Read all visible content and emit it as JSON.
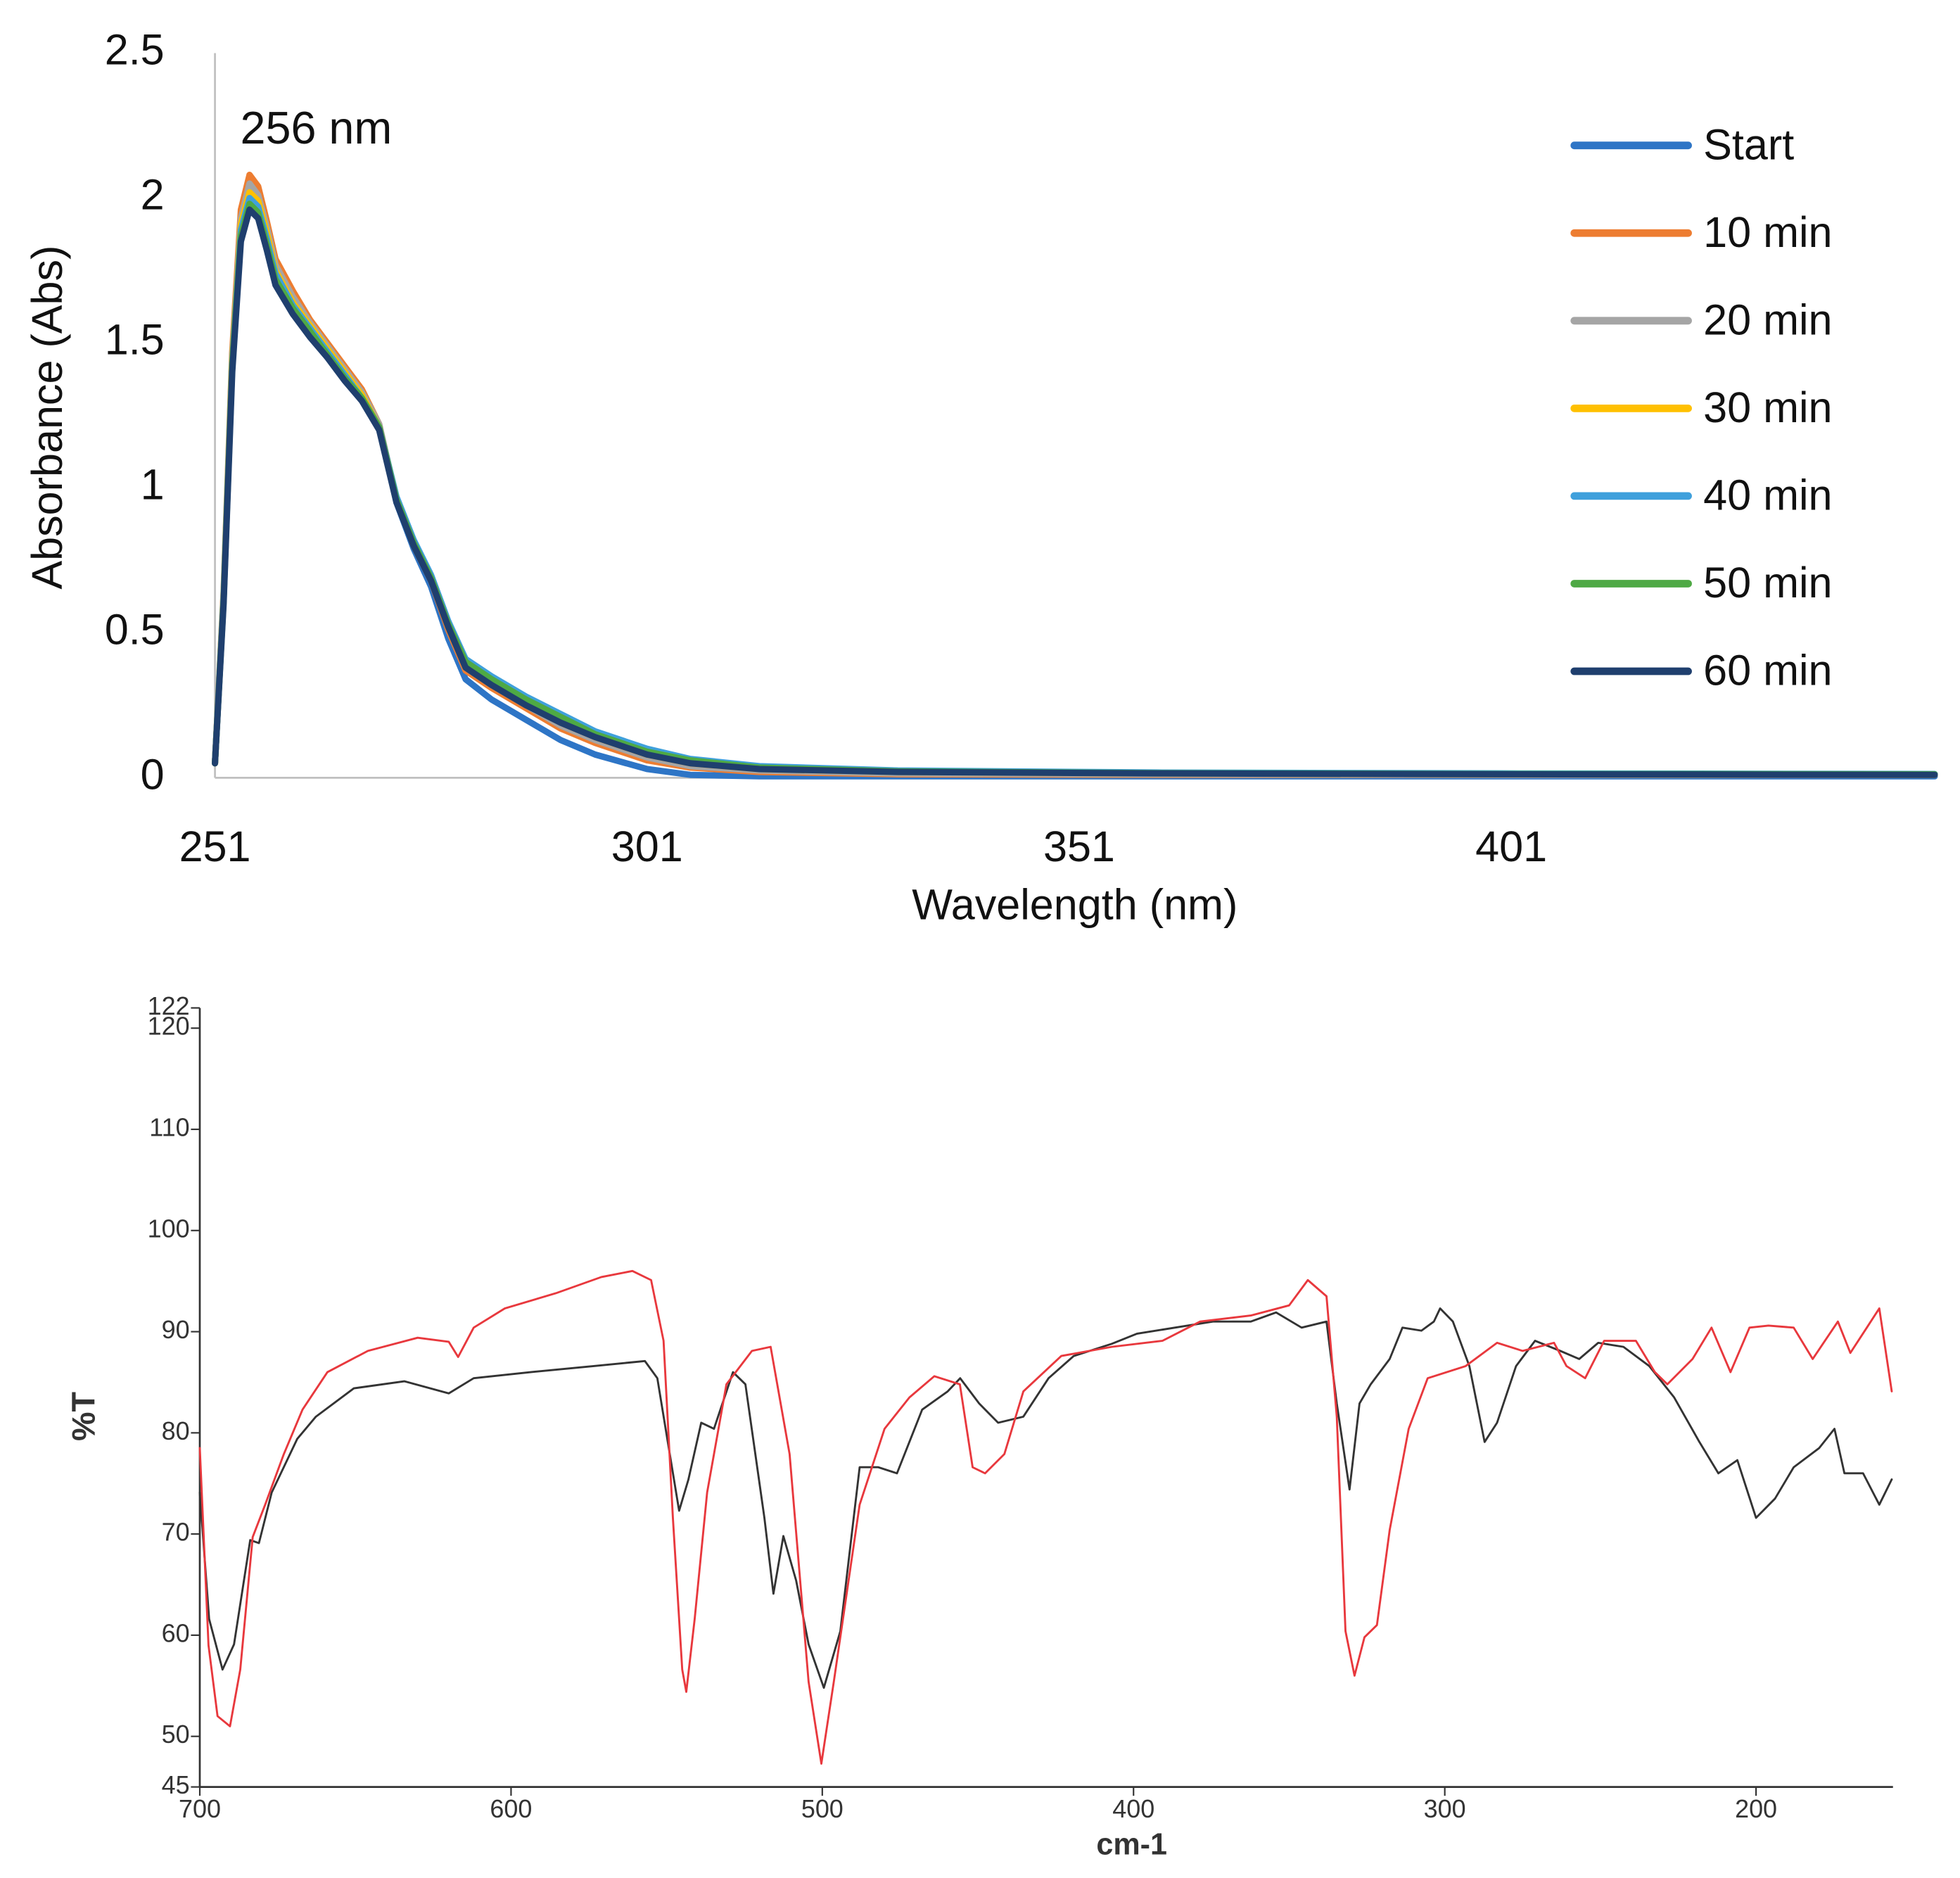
{
  "chart_data": [
    {
      "type": "line",
      "annotation": "256 nm",
      "xlabel": "Wavelength (nm)",
      "ylabel": "Absorbance (Abs)",
      "xlim": [
        251,
        450
      ],
      "xticks": [
        251,
        301,
        351,
        401
      ],
      "ylim": [
        0,
        2.5
      ],
      "yticks": [
        0,
        0.5,
        1,
        1.5,
        2,
        2.5
      ],
      "legend": "upper right",
      "x": [
        251,
        252,
        253,
        254,
        255,
        256,
        257,
        258,
        260,
        262,
        264,
        266,
        268,
        270,
        272,
        274,
        276,
        278,
        280,
        283,
        287,
        291,
        295,
        301,
        306,
        314,
        330,
        360,
        400,
        450
      ],
      "series": [
        {
          "name": "Start",
          "color": "#2e75c6",
          "values": [
            0.05,
            0.62,
            1.43,
            1.9,
            2.0,
            1.97,
            1.86,
            1.74,
            1.64,
            1.55,
            1.47,
            1.39,
            1.32,
            1.21,
            0.95,
            0.79,
            0.66,
            0.48,
            0.34,
            0.27,
            0.2,
            0.13,
            0.08,
            0.03,
            0.01,
            0.005,
            0.005,
            0.005,
            0.005,
            0.005
          ]
        },
        {
          "name": "10 min",
          "color": "#ed7d31",
          "values": [
            0.05,
            0.64,
            1.47,
            1.96,
            2.08,
            2.04,
            1.92,
            1.79,
            1.68,
            1.58,
            1.5,
            1.42,
            1.34,
            1.22,
            0.96,
            0.8,
            0.68,
            0.51,
            0.37,
            0.31,
            0.24,
            0.17,
            0.12,
            0.06,
            0.035,
            0.02,
            0.012,
            0.01,
            0.01,
            0.01
          ]
        },
        {
          "name": "20 min",
          "color": "#a5a5a5",
          "values": [
            0.05,
            0.63,
            1.45,
            1.93,
            2.05,
            2.01,
            1.9,
            1.77,
            1.66,
            1.57,
            1.49,
            1.41,
            1.33,
            1.22,
            0.96,
            0.81,
            0.69,
            0.52,
            0.38,
            0.32,
            0.25,
            0.18,
            0.13,
            0.07,
            0.04,
            0.025,
            0.015,
            0.012,
            0.01,
            0.01
          ]
        },
        {
          "name": "30 min",
          "color": "#ffc000",
          "values": [
            0.05,
            0.62,
            1.44,
            1.91,
            2.02,
            1.99,
            1.88,
            1.75,
            1.64,
            1.56,
            1.48,
            1.4,
            1.32,
            1.21,
            0.96,
            0.81,
            0.69,
            0.52,
            0.39,
            0.33,
            0.26,
            0.2,
            0.14,
            0.08,
            0.05,
            0.03,
            0.02,
            0.015,
            0.012,
            0.01
          ]
        },
        {
          "name": "40 min",
          "color": "#3fa0dc",
          "values": [
            0.05,
            0.62,
            1.43,
            1.89,
            2.0,
            1.97,
            1.86,
            1.74,
            1.63,
            1.55,
            1.47,
            1.39,
            1.31,
            1.21,
            0.97,
            0.82,
            0.7,
            0.54,
            0.41,
            0.35,
            0.28,
            0.22,
            0.16,
            0.1,
            0.065,
            0.04,
            0.025,
            0.018,
            0.015,
            0.013
          ]
        },
        {
          "name": "50 min",
          "color": "#4ea944",
          "values": [
            0.05,
            0.61,
            1.42,
            1.87,
            1.98,
            1.95,
            1.84,
            1.72,
            1.62,
            1.54,
            1.46,
            1.38,
            1.31,
            1.21,
            0.96,
            0.81,
            0.69,
            0.53,
            0.4,
            0.34,
            0.27,
            0.21,
            0.15,
            0.09,
            0.06,
            0.035,
            0.022,
            0.016,
            0.013,
            0.012
          ]
        },
        {
          "name": "60 min",
          "color": "#1f3f6e",
          "values": [
            0.05,
            0.6,
            1.4,
            1.85,
            1.96,
            1.93,
            1.82,
            1.7,
            1.6,
            1.52,
            1.45,
            1.37,
            1.3,
            1.2,
            0.95,
            0.8,
            0.68,
            0.52,
            0.38,
            0.32,
            0.25,
            0.19,
            0.14,
            0.08,
            0.05,
            0.03,
            0.02,
            0.015,
            0.012,
            0.01
          ]
        }
      ]
    },
    {
      "type": "line",
      "xlabel": "cm-1",
      "ylabel": "%T",
      "xlim": [
        700,
        156
      ],
      "xticks": [
        700,
        600,
        500,
        400,
        300,
        200
      ],
      "ylim": [
        45,
        122
      ],
      "yticks": [
        45,
        50,
        60,
        70,
        80,
        90,
        100,
        110,
        120,
        122
      ],
      "series": [
        {
          "color": "#333333",
          "x": [
            700,
            697,
            692.7,
            689,
            683.8,
            681,
            676.9,
            668.7,
            662.7,
            650.5,
            634.3,
            620,
            612,
            593.7,
            573.4,
            557,
            553,
            549,
            546,
            543,
            538.9,
            534.8,
            528.7,
            524.7,
            518.6,
            515.7,
            512.5,
            508.4,
            504.4,
            499.5,
            494.2,
            488,
            482,
            476,
            467.9,
            459.7,
            455.7,
            449.6,
            443.5,
            435.4,
            427.3,
            419.2,
            407,
            398.9,
            386.7,
            374.5,
            362.3,
            354.2,
            346,
            338,
            334.7,
            330.6,
            327.4,
            323.8,
            317.7,
            313.6,
            307.5,
            303.5,
            301.5,
            297.4,
            292.1,
            287.2,
            283.2,
            277.1,
            271,
            262.9,
            256.8,
            250.7,
            242.6,
            234.3,
            226.3,
            218.2,
            212.1,
            206,
            200,
            193.9,
            187.9,
            179.7,
            174.8,
            171.6,
            165.6,
            160.4,
            156.4
          ],
          "values": [
            74.1,
            61.6,
            56.6,
            59.1,
            69.4,
            69.1,
            74.1,
            79.4,
            81.6,
            84.4,
            85.1,
            83.9,
            85.4,
            86,
            86.6,
            87.1,
            85.4,
            77.9,
            72.3,
            75.4,
            81,
            80.4,
            86,
            84.8,
            71.6,
            64.1,
            69.8,
            65.4,
            59.1,
            54.8,
            60.4,
            76.6,
            76.6,
            76,
            82.3,
            84.1,
            85.4,
            82.9,
            81,
            81.6,
            85.4,
            87.6,
            88.8,
            89.8,
            90.4,
            91,
            91,
            91.9,
            90.4,
            91,
            82.9,
            74.4,
            82.9,
            84.8,
            87.3,
            90.4,
            90.1,
            91,
            92.3,
            91,
            86.6,
            79.1,
            81,
            86.6,
            89.1,
            88.1,
            87.3,
            88.9,
            88.5,
            86.6,
            83.5,
            79.1,
            76,
            77.3,
            71.6,
            73.5,
            76.6,
            78.5,
            80.4,
            76,
            76,
            72.9,
            75.4
          ]
        },
        {
          "color": "#e8383d",
          "x": [
            700,
            697.2,
            694.3,
            690.3,
            687,
            683,
            679,
            673,
            667,
            659,
            646,
            630,
            620,
            617,
            612,
            602,
            585.6,
            571,
            561,
            555,
            551,
            548,
            545,
            543.7,
            541,
            537,
            530.8,
            522.6,
            516.6,
            510.5,
            504.4,
            500.3,
            496.3,
            488,
            480,
            472,
            464,
            455.8,
            451.7,
            447.7,
            441.5,
            435.4,
            423.2,
            407,
            390.7,
            378.6,
            362.3,
            350,
            344,
            338,
            334.7,
            331.9,
            329,
            325.8,
            321.8,
            317.7,
            311.6,
            305.5,
            293.3,
            283.2,
            275,
            264.9,
            260.9,
            254.9,
            248.8,
            238.6,
            232.5,
            228.5,
            220.4,
            214.3,
            208.2,
            202.1,
            196,
            187.9,
            181.8,
            173.7,
            169.7,
            164.4,
            160.4,
            156.4
          ],
          "values": [
            78.5,
            59,
            52,
            51,
            56.6,
            69.7,
            72.9,
            77.9,
            82.3,
            86,
            88.1,
            89.4,
            89,
            87.5,
            90.4,
            92.3,
            93.8,
            95.4,
            96,
            95.1,
            89.1,
            71.6,
            56.6,
            54.4,
            61.6,
            74.1,
            84.8,
            88.1,
            88.5,
            77.9,
            55.4,
            47.3,
            55.4,
            72.9,
            80.4,
            83.5,
            85.6,
            84.8,
            76.6,
            76,
            77.9,
            84.1,
            87.6,
            88.5,
            89.1,
            91,
            91.6,
            92.6,
            95.1,
            93.5,
            81.6,
            60.4,
            56,
            59.8,
            61,
            70.4,
            80.4,
            85.4,
            86.6,
            88.9,
            88.1,
            88.9,
            86.6,
            85.4,
            89.1,
            89.1,
            86,
            84.8,
            87.3,
            90.4,
            86,
            90.4,
            90.6,
            90.4,
            87.3,
            91,
            87.9,
            90.4,
            92.3,
            84.1
          ]
        }
      ]
    }
  ]
}
